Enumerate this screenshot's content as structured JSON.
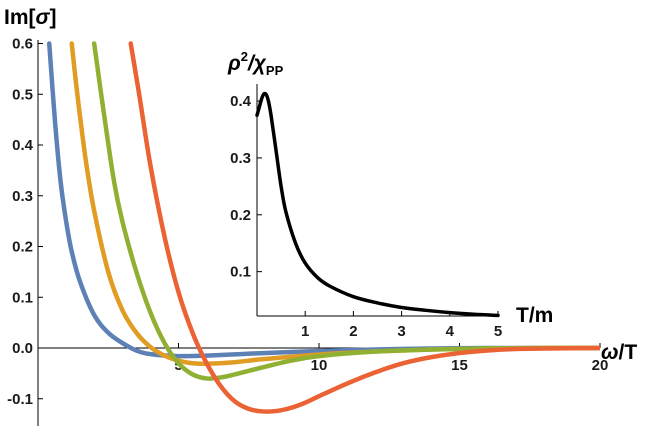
{
  "chart_data": [
    {
      "type": "line",
      "xlabel": "ω/T",
      "ylabel": "Im[σ]",
      "xlim": [
        0,
        20
      ],
      "ylim": [
        -0.15,
        0.6
      ],
      "xticks": [
        "5",
        "10",
        "15",
        "20"
      ],
      "yticks": [
        "-0.1",
        "0.0",
        "0.1",
        "0.2",
        "0.3",
        "0.4",
        "0.5",
        "0.6"
      ],
      "grid": false,
      "legend": "none",
      "series": [
        {
          "color": "#5e81b5",
          "x": [
            0.4,
            0.6,
            0.8,
            1.0,
            1.2,
            1.5,
            2.0,
            2.5,
            3.0,
            3.5,
            4.0,
            5.0,
            6.0,
            8.0,
            10.0,
            12.0,
            14.0,
            16.0,
            18.0,
            20.0
          ],
          "y": [
            0.6,
            0.45,
            0.33,
            0.25,
            0.19,
            0.13,
            0.065,
            0.03,
            0.01,
            -0.005,
            -0.012,
            -0.016,
            -0.015,
            -0.01,
            -0.006,
            -0.003,
            -0.001,
            0.0,
            0.0,
            0.0
          ]
        },
        {
          "color": "#e19c24",
          "x": [
            1.2,
            1.4,
            1.7,
            2.0,
            2.5,
            3.0,
            3.5,
            4.0,
            4.5,
            5.0,
            5.5,
            6.0,
            7.0,
            8.0,
            10.0,
            12.0,
            14.0,
            16.0,
            18.0,
            20.0
          ],
          "y": [
            0.6,
            0.5,
            0.37,
            0.27,
            0.15,
            0.075,
            0.03,
            0.002,
            -0.015,
            -0.025,
            -0.03,
            -0.031,
            -0.028,
            -0.022,
            -0.013,
            -0.007,
            -0.003,
            -0.001,
            0.0,
            0.0
          ]
        },
        {
          "color": "#8fb032",
          "x": [
            2.0,
            2.3,
            2.7,
            3.0,
            3.5,
            4.0,
            4.5,
            5.0,
            5.5,
            6.0,
            6.5,
            7.0,
            8.0,
            9.0,
            10.0,
            12.0,
            14.0,
            16.0,
            18.0,
            20.0
          ],
          "y": [
            0.6,
            0.48,
            0.33,
            0.25,
            0.15,
            0.07,
            0.01,
            -0.03,
            -0.052,
            -0.06,
            -0.058,
            -0.052,
            -0.038,
            -0.025,
            -0.016,
            -0.007,
            -0.003,
            -0.001,
            0.0,
            0.0
          ]
        },
        {
          "color": "#eb6235",
          "x": [
            3.3,
            3.6,
            4.0,
            4.5,
            5.0,
            5.5,
            6.0,
            6.5,
            7.0,
            7.5,
            8.0,
            8.5,
            9.0,
            9.5,
            10.0,
            11.0,
            12.0,
            13.0,
            14.0,
            15.0,
            16.0,
            17.0,
            18.0,
            20.0
          ],
          "y": [
            0.6,
            0.5,
            0.36,
            0.22,
            0.11,
            0.03,
            -0.03,
            -0.075,
            -0.105,
            -0.12,
            -0.125,
            -0.124,
            -0.118,
            -0.108,
            -0.095,
            -0.07,
            -0.048,
            -0.03,
            -0.018,
            -0.01,
            -0.005,
            -0.002,
            -0.001,
            0.0
          ]
        }
      ]
    },
    {
      "type": "line",
      "xlabel": "T/m",
      "ylabel": "ρ²/χPP",
      "ylabel_main": "ρ",
      "ylabel_sup": "2",
      "ylabel_rest": "/χ",
      "ylabel_sub": "PP",
      "xlim": [
        0,
        5
      ],
      "ylim": [
        0.022,
        0.43
      ],
      "xticks": [
        "1",
        "2",
        "3",
        "4",
        "5"
      ],
      "yticks": [
        "0.1",
        "0.2",
        "0.3",
        "0.4"
      ],
      "grid": false,
      "legend": "none",
      "series": [
        {
          "color": "#000000",
          "x": [
            0.0,
            0.05,
            0.1,
            0.15,
            0.2,
            0.25,
            0.3,
            0.4,
            0.5,
            0.6,
            0.8,
            1.0,
            1.25,
            1.5,
            2.0,
            2.5,
            3.0,
            3.5,
            4.0,
            4.5,
            5.0
          ],
          "y": [
            0.375,
            0.39,
            0.405,
            0.413,
            0.41,
            0.395,
            0.37,
            0.31,
            0.25,
            0.205,
            0.15,
            0.115,
            0.09,
            0.075,
            0.056,
            0.045,
            0.037,
            0.032,
            0.028,
            0.025,
            0.023
          ]
        }
      ]
    }
  ]
}
